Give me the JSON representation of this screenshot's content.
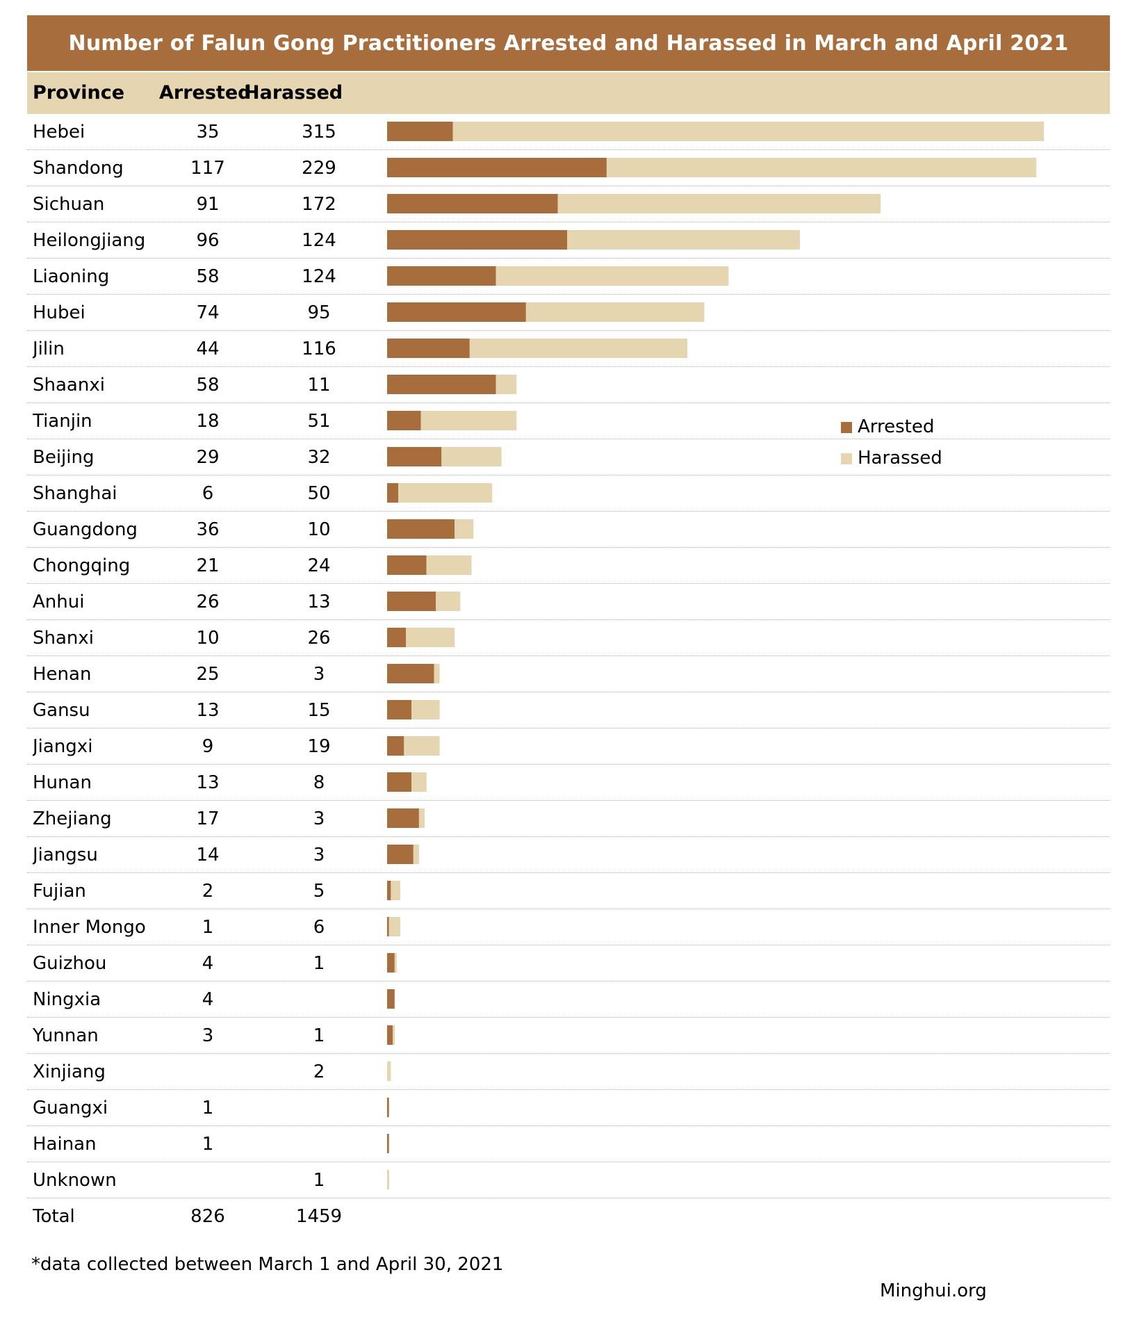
{
  "title": "Number of Falun Gong Practitioners Arrested and Harassed in March and April 2021",
  "header": {
    "province": "Province",
    "arrested": "Arrested",
    "harassed": "Harassed"
  },
  "colors": {
    "arrested": "#a86d3c",
    "harassed": "#e5d5b0"
  },
  "legend": {
    "arrested": "Arrested",
    "harassed": "Harassed"
  },
  "chart_data": {
    "type": "bar",
    "stacked": true,
    "orientation": "horizontal",
    "title": "Number of Falun Gong Practitioners Arrested and Harassed in March and April 2021",
    "legend_position": "right",
    "categories": [
      "Hebei",
      "Shandong",
      "Sichuan",
      "Heilongjiang",
      "Liaoning",
      "Hubei",
      "Jilin",
      "Shaanxi",
      "Tianjin",
      "Beijing",
      "Shanghai",
      "Guangdong",
      "Chongqing",
      "Anhui",
      "Shanxi",
      "Henan",
      "Gansu",
      "Jiangxi",
      "Hunan",
      "Zhejiang",
      "Jiangsu",
      "Fujian",
      "Inner Mongolia",
      "Guizhou",
      "Ningxia",
      "Yunnan",
      "Xinjiang",
      "Guangxi",
      "Hainan",
      "Unknown"
    ],
    "category_labels": [
      "Hebei",
      "Shandong",
      "Sichuan",
      "Heilongjiang",
      "Liaoning",
      "Hubei",
      "Jilin",
      "Shaanxi",
      "Tianjin",
      "Beijing",
      "Shanghai",
      "Guangdong",
      "Chongqing",
      "Anhui",
      "Shanxi",
      "Henan",
      "Gansu",
      "Jiangxi",
      "Hunan",
      "Zhejiang",
      "Jiangsu",
      "Fujian",
      "Inner Mongo",
      "Guizhou",
      "Ningxia",
      "Yunnan",
      "Xinjiang",
      "Guangxi",
      "Hainan",
      "Unknown"
    ],
    "series": [
      {
        "name": "Arrested",
        "values": [
          35,
          117,
          91,
          96,
          58,
          74,
          44,
          58,
          18,
          29,
          6,
          36,
          21,
          26,
          10,
          25,
          13,
          9,
          13,
          17,
          14,
          2,
          1,
          4,
          4,
          3,
          null,
          1,
          1,
          null
        ]
      },
      {
        "name": "Harassed",
        "values": [
          315,
          229,
          172,
          124,
          124,
          95,
          116,
          11,
          51,
          32,
          50,
          10,
          24,
          13,
          26,
          3,
          15,
          19,
          8,
          3,
          3,
          5,
          6,
          1,
          null,
          1,
          2,
          null,
          null,
          1
        ]
      }
    ],
    "totals": {
      "label": "Total",
      "arrested": "826",
      "harassed": "1459"
    }
  },
  "footnote": "*data collected between March 1 and April 30, 2021",
  "source": "Minghui.org"
}
